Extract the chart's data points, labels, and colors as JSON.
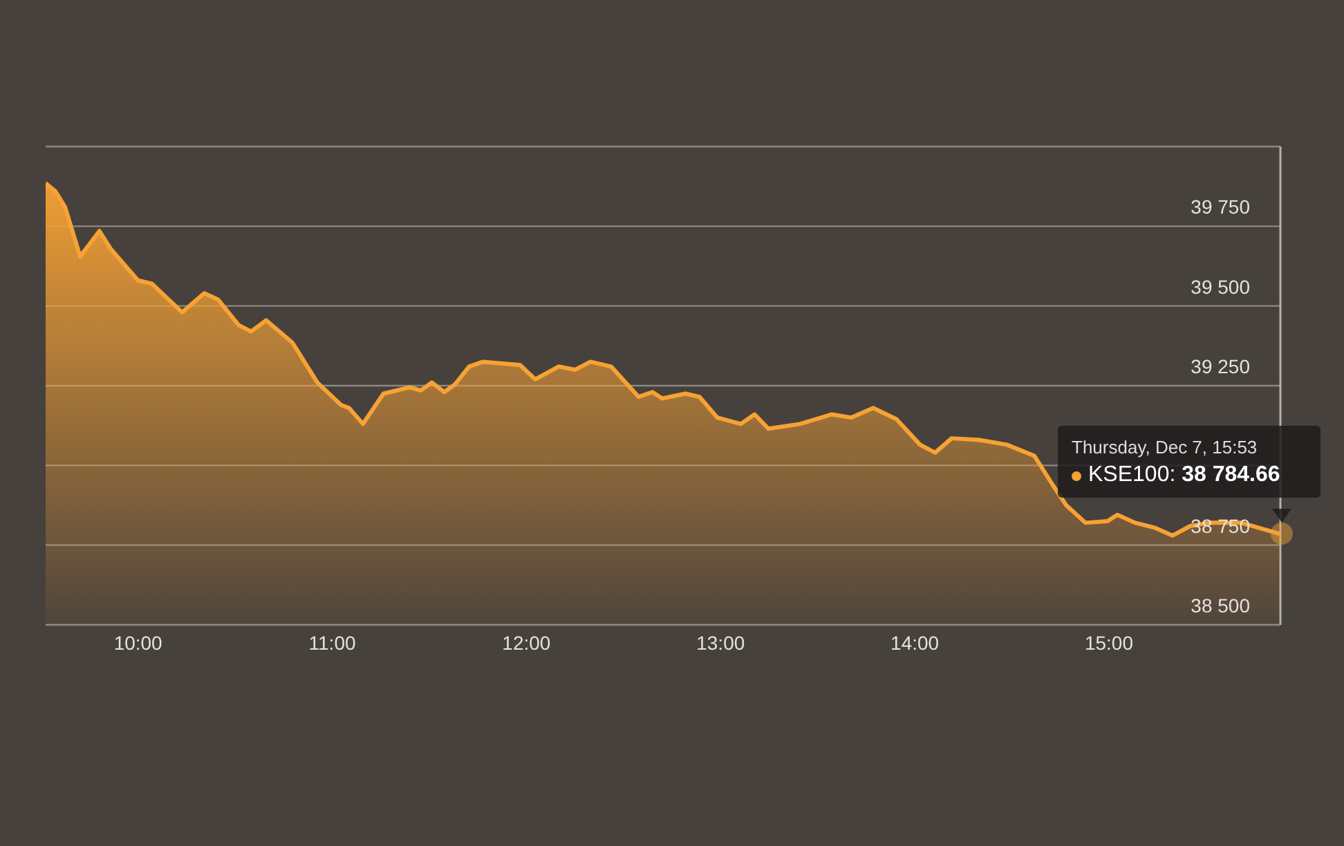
{
  "chart_data": {
    "type": "area",
    "x": [
      9.524,
      9.574,
      9.624,
      9.702,
      9.801,
      9.858,
      10,
      10.071,
      10.227,
      10.341,
      10.412,
      10.518,
      10.582,
      10.66,
      10.795,
      10.923,
      11.044,
      11.087,
      11.158,
      11.264,
      11.399,
      11.456,
      11.513,
      11.577,
      11.634,
      11.705,
      11.776,
      11.868,
      11.967,
      12.045,
      12.166,
      12.251,
      12.33,
      12.436,
      12.578,
      12.649,
      12.699,
      12.82,
      12.891,
      12.983,
      13.104,
      13.175,
      13.246,
      13.409,
      13.572,
      13.672,
      13.786,
      13.906,
      14.027,
      14.105,
      14.19,
      14.332,
      14.474,
      14.616,
      14.709,
      14.78,
      14.879,
      14.993,
      15.043,
      15.135,
      15.234,
      15.327,
      15.419,
      15.518,
      15.682,
      15.883
    ],
    "series": [
      {
        "name": "KSE100:",
        "color": "#f7a234",
        "values": [
          39885,
          39860,
          39810,
          39655,
          39735,
          39680,
          39580,
          39570,
          39480,
          39540,
          39520,
          39440,
          39420,
          39455,
          39385,
          39260,
          39190,
          39180,
          39130,
          39225,
          39245,
          39235,
          39260,
          39230,
          39255,
          39310,
          39325,
          39320,
          39315,
          39270,
          39310,
          39300,
          39325,
          39310,
          39215,
          39230,
          39210,
          39225,
          39215,
          39150,
          39130,
          39160,
          39115,
          39130,
          39160,
          39150,
          39180,
          39145,
          39065,
          39040,
          39085,
          39080,
          39065,
          39030,
          38940,
          38875,
          38820,
          38825,
          38845,
          38820,
          38805,
          38780,
          38810,
          38820,
          38820,
          38784.66
        ],
        "value_labels": [
          null,
          null,
          null,
          null,
          null,
          null,
          null,
          null,
          null,
          null,
          null,
          null,
          null,
          null,
          null,
          null,
          null,
          null,
          null,
          null,
          null,
          null,
          null,
          null,
          null,
          null,
          null,
          null,
          null,
          null,
          null,
          null,
          null,
          null,
          null,
          null,
          null,
          null,
          null,
          null,
          null,
          null,
          null,
          null,
          null,
          null,
          null,
          null,
          null,
          null,
          null,
          null,
          null,
          null,
          null,
          null,
          null,
          null,
          null,
          null,
          null,
          null,
          null,
          null,
          null,
          "38 784.66"
        ]
      }
    ],
    "xlim": [
      9.524,
      15.883
    ],
    "xticks": [
      {
        "value": 10,
        "label": "10:00"
      },
      {
        "value": 11,
        "label": "11:00"
      },
      {
        "value": 12,
        "label": "12:00"
      },
      {
        "value": 13,
        "label": "13:00"
      },
      {
        "value": 14,
        "label": "14:00"
      },
      {
        "value": 15,
        "label": "15:00"
      }
    ],
    "ylim": [
      38500,
      40000
    ],
    "yticks": [
      {
        "value": 38500,
        "label": "38 500"
      },
      {
        "value": 38750,
        "label": "38 750"
      },
      {
        "value": 39000,
        "label": null
      },
      {
        "value": 39250,
        "label": "39 250"
      },
      {
        "value": 39500,
        "label": "39 500"
      },
      {
        "value": 39750,
        "label": "39 750"
      },
      {
        "value": 40000,
        "label": null
      }
    ],
    "grid": "y",
    "legend": "right",
    "marker": "none",
    "line_style": "solid",
    "annotations": [
      "Thursday, Dec 7, 15:53"
    ]
  }
}
